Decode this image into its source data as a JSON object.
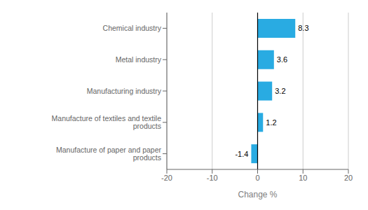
{
  "chart_data": {
    "type": "bar",
    "orientation": "horizontal",
    "categories": [
      "Manufacture of paper and paper products",
      "Manufacture of textiles and textile products",
      "Manufacturing industry",
      "Metal industry",
      "Chemical industry"
    ],
    "values": [
      -1.4,
      1.2,
      3.2,
      3.6,
      8.3
    ],
    "color": "#29ABE2",
    "xlabel": "Change %",
    "xlim": [
      -20,
      20
    ],
    "xticks": [
      -20,
      -10,
      0,
      10,
      20
    ],
    "grid": true,
    "data_labels": true
  }
}
